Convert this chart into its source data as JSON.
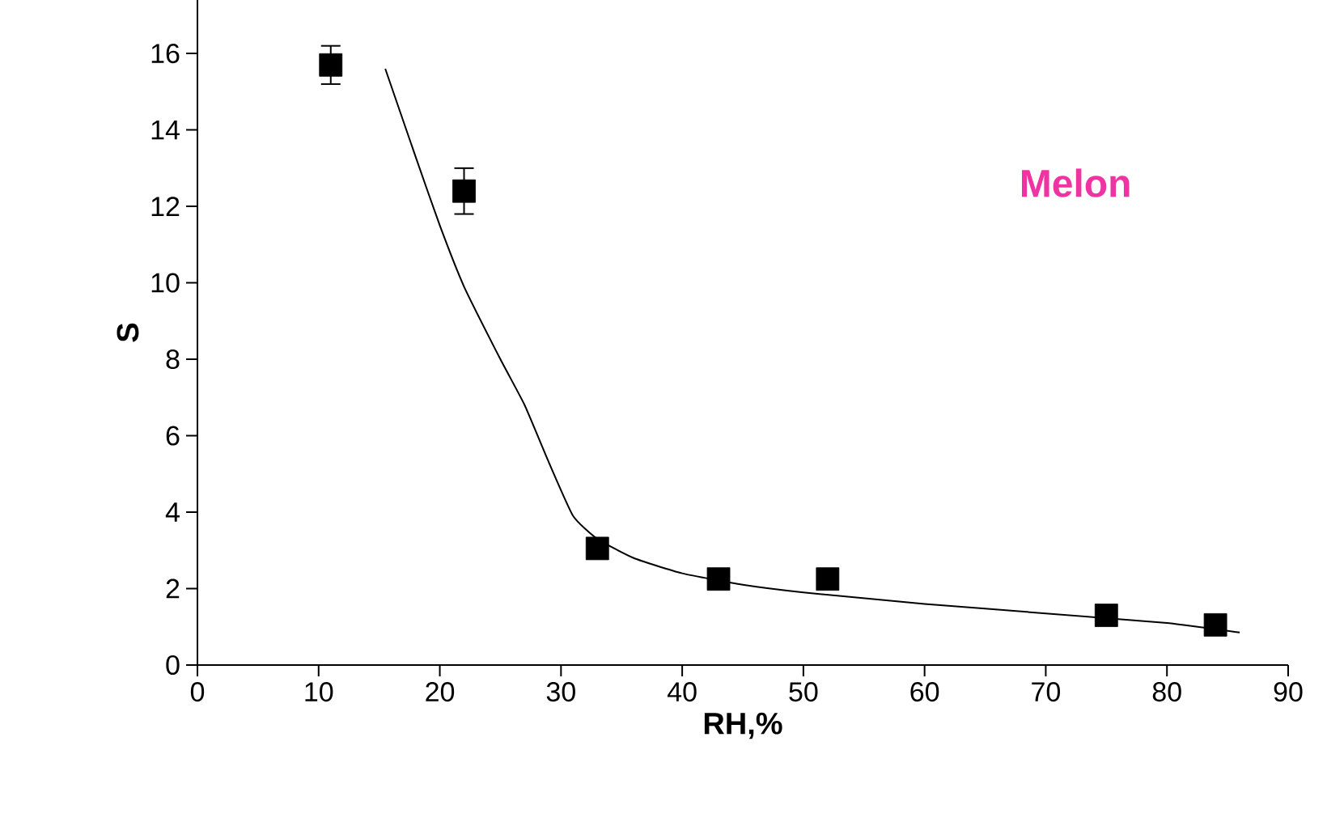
{
  "chart_data": {
    "type": "scatter",
    "xlabel": "RH,%",
    "ylabel": "S",
    "annotations": [
      "Melon"
    ],
    "xlim": [
      0,
      90
    ],
    "ylim": [
      0,
      17.4
    ],
    "xticks": [
      0,
      10,
      20,
      30,
      40,
      50,
      60,
      70,
      80,
      90
    ],
    "yticks": [
      0,
      2,
      4,
      6,
      8,
      10,
      12,
      14,
      16
    ],
    "series": [
      {
        "color": "#000000",
        "marker": "square",
        "x": [
          11,
          22,
          33,
          43,
          52,
          75,
          84
        ],
        "values": [
          15.7,
          12.4,
          3.05,
          2.25,
          2.25,
          1.3,
          1.05
        ],
        "errors": [
          0.5,
          0.6,
          null,
          null,
          null,
          null,
          null
        ]
      },
      {
        "type": "line",
        "color": "#000000",
        "marker": "none",
        "line_style": "solid",
        "x": [
          15.5,
          18,
          20,
          22,
          25,
          27,
          29,
          31,
          33,
          36,
          40,
          45,
          50,
          60,
          70,
          80,
          86
        ],
        "values": [
          15.6,
          13.3,
          11.5,
          9.9,
          8.0,
          6.8,
          5.3,
          3.9,
          3.3,
          2.8,
          2.4,
          2.1,
          1.9,
          1.6,
          1.35,
          1.1,
          0.85
        ]
      }
    ]
  }
}
